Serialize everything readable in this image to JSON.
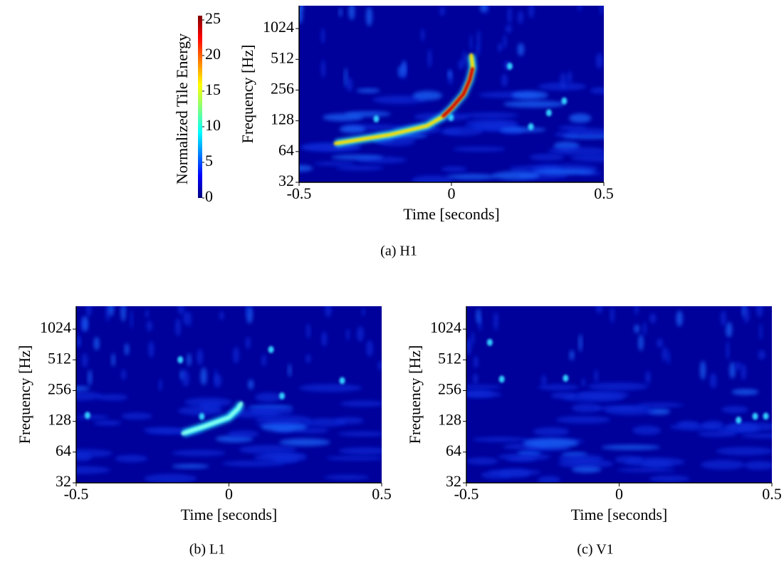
{
  "chart_data": [
    {
      "type": "spectrogram",
      "caption": "(a) H1",
      "xlabel": "Time [seconds]",
      "ylabel": "Frequency [Hz]",
      "xlim": [
        -0.5,
        0.5
      ],
      "xticks": [
        -0.5,
        0,
        0.5
      ],
      "ylim": [
        32,
        1715
      ],
      "yticks": [
        32,
        64,
        128,
        256,
        512,
        1024
      ],
      "yscale": "log",
      "colorbar": {
        "label": "Normalized Tile Energy",
        "lim": [
          0,
          25
        ],
        "ticks": [
          0,
          5,
          10,
          15,
          20,
          25
        ]
      }
    },
    {
      "type": "spectrogram",
      "caption": "(b) L1",
      "xlabel": "Time [seconds]",
      "ylabel": "Frequency [Hz]",
      "xlim": [
        -0.5,
        0.5
      ],
      "xticks": [
        -0.5,
        0,
        0.5
      ],
      "ylim": [
        32,
        1715
      ],
      "yticks": [
        32,
        64,
        128,
        256,
        512,
        1024
      ],
      "yscale": "log"
    },
    {
      "type": "spectrogram",
      "caption": "(c) V1",
      "xlabel": "Time [seconds]",
      "ylabel": "Frequency [Hz]",
      "xlim": [
        -0.5,
        0.5
      ],
      "xticks": [
        -0.5,
        0,
        0.5
      ],
      "ylim": [
        32,
        1715
      ],
      "yticks": [
        32,
        64,
        128,
        256,
        512,
        1024
      ],
      "yscale": "log"
    }
  ]
}
